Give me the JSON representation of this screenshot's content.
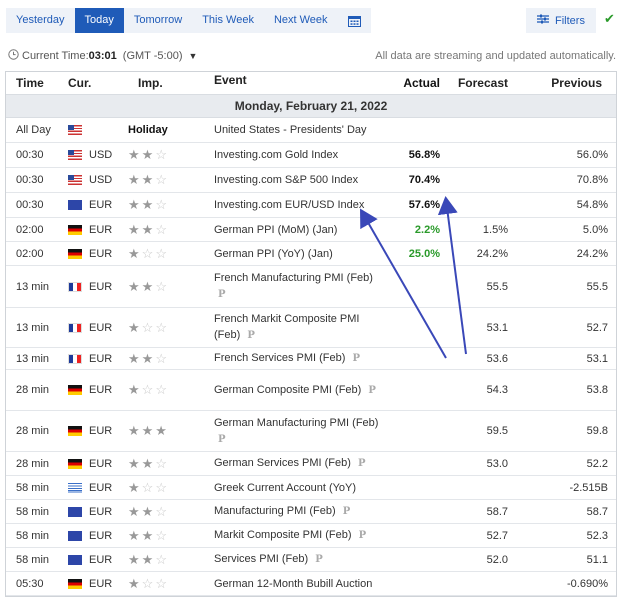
{
  "tabs": [
    "Yesterday",
    "Today",
    "Tomorrow",
    "This Week",
    "Next Week"
  ],
  "active_tab": "Today",
  "filters_label": "Filters",
  "time_bar": {
    "label": "Current Time:",
    "time": "03:01",
    "zone": "(GMT -5:00)",
    "streaming_note": "All data are streaming and updated automatically."
  },
  "columns": {
    "time": "Time",
    "cur": "Cur.",
    "imp": "Imp.",
    "event": "Event",
    "actual": "Actual",
    "forecast": "Forecast",
    "previous": "Previous"
  },
  "day_header": "Monday, February 21, 2022",
  "rows": [
    {
      "time": "All Day",
      "flag": "us",
      "cur": "",
      "imp_text": "Holiday",
      "stars": 0,
      "event": "United States - Presidents' Day",
      "actual": "",
      "forecast": "",
      "previous": ""
    },
    {
      "time": "00:30",
      "flag": "us",
      "cur": "USD",
      "stars": 2,
      "event": "Investing.com Gold Index",
      "actual": "56.8%",
      "forecast": "",
      "previous": "56.0%"
    },
    {
      "time": "00:30",
      "flag": "us",
      "cur": "USD",
      "stars": 2,
      "event": "Investing.com S&P 500 Index",
      "actual": "70.4%",
      "forecast": "",
      "previous": "70.8%"
    },
    {
      "time": "00:30",
      "flag": "eu",
      "cur": "EUR",
      "stars": 2,
      "event": "Investing.com EUR/USD Index",
      "actual": "57.6%",
      "forecast": "",
      "previous": "54.8%"
    },
    {
      "time": "02:00",
      "flag": "de",
      "cur": "EUR",
      "stars": 2,
      "event": "German PPI (MoM) (Jan)",
      "actual": "2.2%",
      "actual_green": true,
      "forecast": "1.5%",
      "previous": "5.0%"
    },
    {
      "time": "02:00",
      "flag": "de",
      "cur": "EUR",
      "stars": 1,
      "event": "German PPI (YoY) (Jan)",
      "actual": "25.0%",
      "actual_green": true,
      "forecast": "24.2%",
      "previous": "24.2%"
    },
    {
      "time": "13 min",
      "flag": "fr",
      "cur": "EUR",
      "stars": 2,
      "event": "French Manufacturing PMI (Feb)",
      "prelim": true,
      "actual": "",
      "forecast": "55.5",
      "previous": "55.5"
    },
    {
      "time": "13 min",
      "flag": "fr",
      "cur": "EUR",
      "stars": 1,
      "event": "French Markit Composite PMI (Feb)",
      "prelim": true,
      "actual": "",
      "forecast": "53.1",
      "previous": "52.7"
    },
    {
      "time": "13 min",
      "flag": "fr",
      "cur": "EUR",
      "stars": 2,
      "event": "French Services PMI (Feb)",
      "prelim": true,
      "actual": "",
      "forecast": "53.6",
      "previous": "53.1"
    },
    {
      "time": "28 min",
      "flag": "de",
      "cur": "EUR",
      "stars": 1,
      "event": "German Composite PMI (Feb)",
      "prelim": true,
      "actual": "",
      "forecast": "54.3",
      "previous": "53.8"
    },
    {
      "time": "28 min",
      "flag": "de",
      "cur": "EUR",
      "stars": 3,
      "event": "German Manufacturing PMI (Feb)",
      "prelim": true,
      "actual": "",
      "forecast": "59.5",
      "previous": "59.8"
    },
    {
      "time": "28 min",
      "flag": "de",
      "cur": "EUR",
      "stars": 2,
      "event": "German Services PMI (Feb)",
      "prelim": true,
      "actual": "",
      "forecast": "53.0",
      "previous": "52.2"
    },
    {
      "time": "58 min",
      "flag": "gr",
      "cur": "EUR",
      "stars": 1,
      "event": "Greek Current Account (YoY)",
      "actual": "",
      "forecast": "",
      "previous": "-2.515B"
    },
    {
      "time": "58 min",
      "flag": "eu",
      "cur": "EUR",
      "stars": 2,
      "event": "Manufacturing PMI (Feb)",
      "prelim": true,
      "actual": "",
      "forecast": "58.7",
      "previous": "58.7"
    },
    {
      "time": "58 min",
      "flag": "eu",
      "cur": "EUR",
      "stars": 2,
      "event": "Markit Composite PMI (Feb)",
      "prelim": true,
      "actual": "",
      "forecast": "52.7",
      "previous": "52.3"
    },
    {
      "time": "58 min",
      "flag": "eu",
      "cur": "EUR",
      "stars": 2,
      "event": "Services PMI (Feb)",
      "prelim": true,
      "actual": "",
      "forecast": "52.0",
      "previous": "51.1"
    },
    {
      "time": "05:30",
      "flag": "de",
      "cur": "EUR",
      "stars": 1,
      "event": "German 12-Month Bubill Auction",
      "actual": "",
      "forecast": "",
      "previous": "-0.690%"
    }
  ],
  "prelim_mark": "P",
  "annotation_color": "#3a48b8"
}
